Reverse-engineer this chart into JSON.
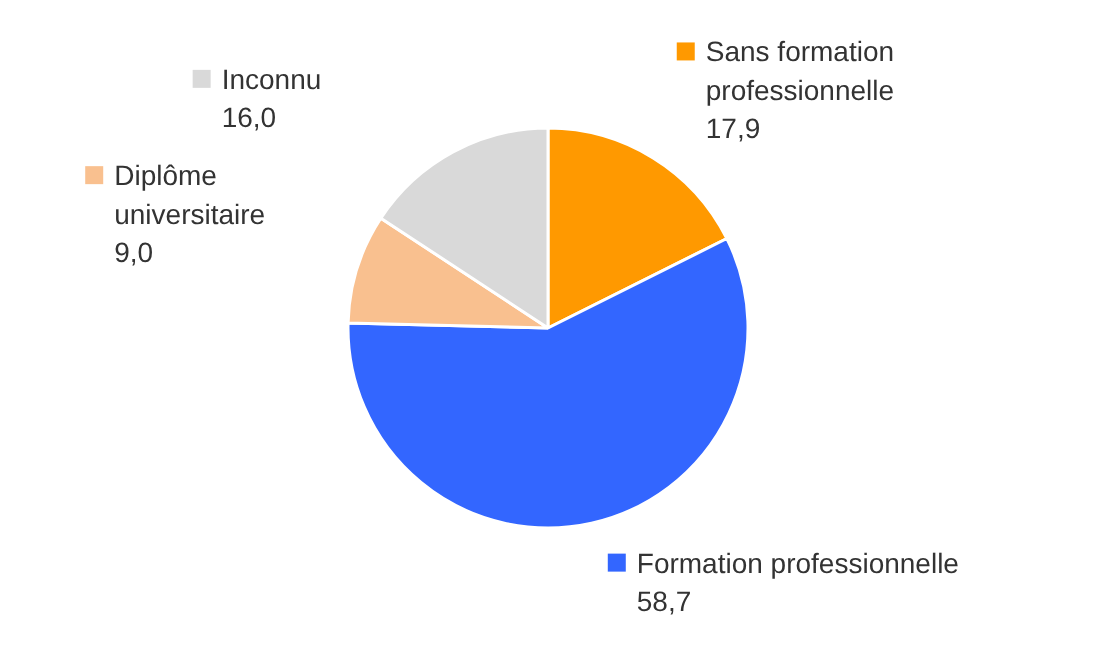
{
  "chart_data": {
    "type": "pie",
    "categories": [
      "Sans formation professionnelle",
      "Formation professionnelle",
      "Diplôme universitaire",
      "Inconnu"
    ],
    "values": [
      17.9,
      58.7,
      9.0,
      16.0
    ],
    "colors": [
      "#ff9900",
      "#3366ff",
      "#f9c08f",
      "#d9d9d9"
    ],
    "value_labels": [
      "17,9",
      "58,7",
      "9,0",
      "16,0"
    ],
    "legend": "top left"
  }
}
